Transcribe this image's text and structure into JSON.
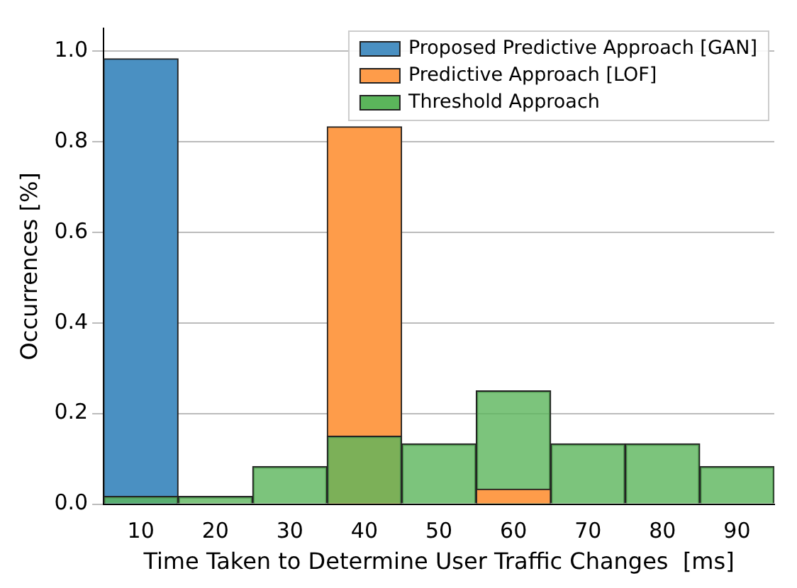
{
  "chart_data": {
    "type": "bar",
    "xlabel": "Time Taken to Determine User Traffic Changes  [ms]",
    "ylabel": "Occurrences [%]",
    "categories": [
      "10",
      "20",
      "30",
      "40",
      "50",
      "60",
      "70",
      "80",
      "90"
    ],
    "series": [
      {
        "name": "Proposed Predictive Approach [GAN]",
        "color": "#4a90c2",
        "values": [
          0.983,
          0,
          0,
          0,
          0,
          0,
          0,
          0,
          0
        ]
      },
      {
        "name": "Predictive Approach [LOF]",
        "color": "#fe9c4a",
        "values": [
          0,
          0,
          0,
          0.833,
          0,
          0.033,
          0,
          0,
          0
        ]
      },
      {
        "name": "Threshold Approach",
        "color": "#5bb55b",
        "values": [
          0.017,
          0.017,
          0.083,
          0.15,
          0.133,
          0.25,
          0.133,
          0.133,
          0.083
        ]
      }
    ],
    "ylim": [
      0,
      1.05
    ],
    "yticks": [
      {
        "value": 0,
        "label": "0.0"
      },
      {
        "value": 0.2,
        "label": "0.2"
      },
      {
        "value": 0.4,
        "label": "0.4"
      },
      {
        "value": 0.6,
        "label": "0.6"
      },
      {
        "value": 0.8,
        "label": "0.8"
      },
      {
        "value": 1,
        "label": "1.0"
      }
    ],
    "grid": "y",
    "legend": "top right"
  }
}
